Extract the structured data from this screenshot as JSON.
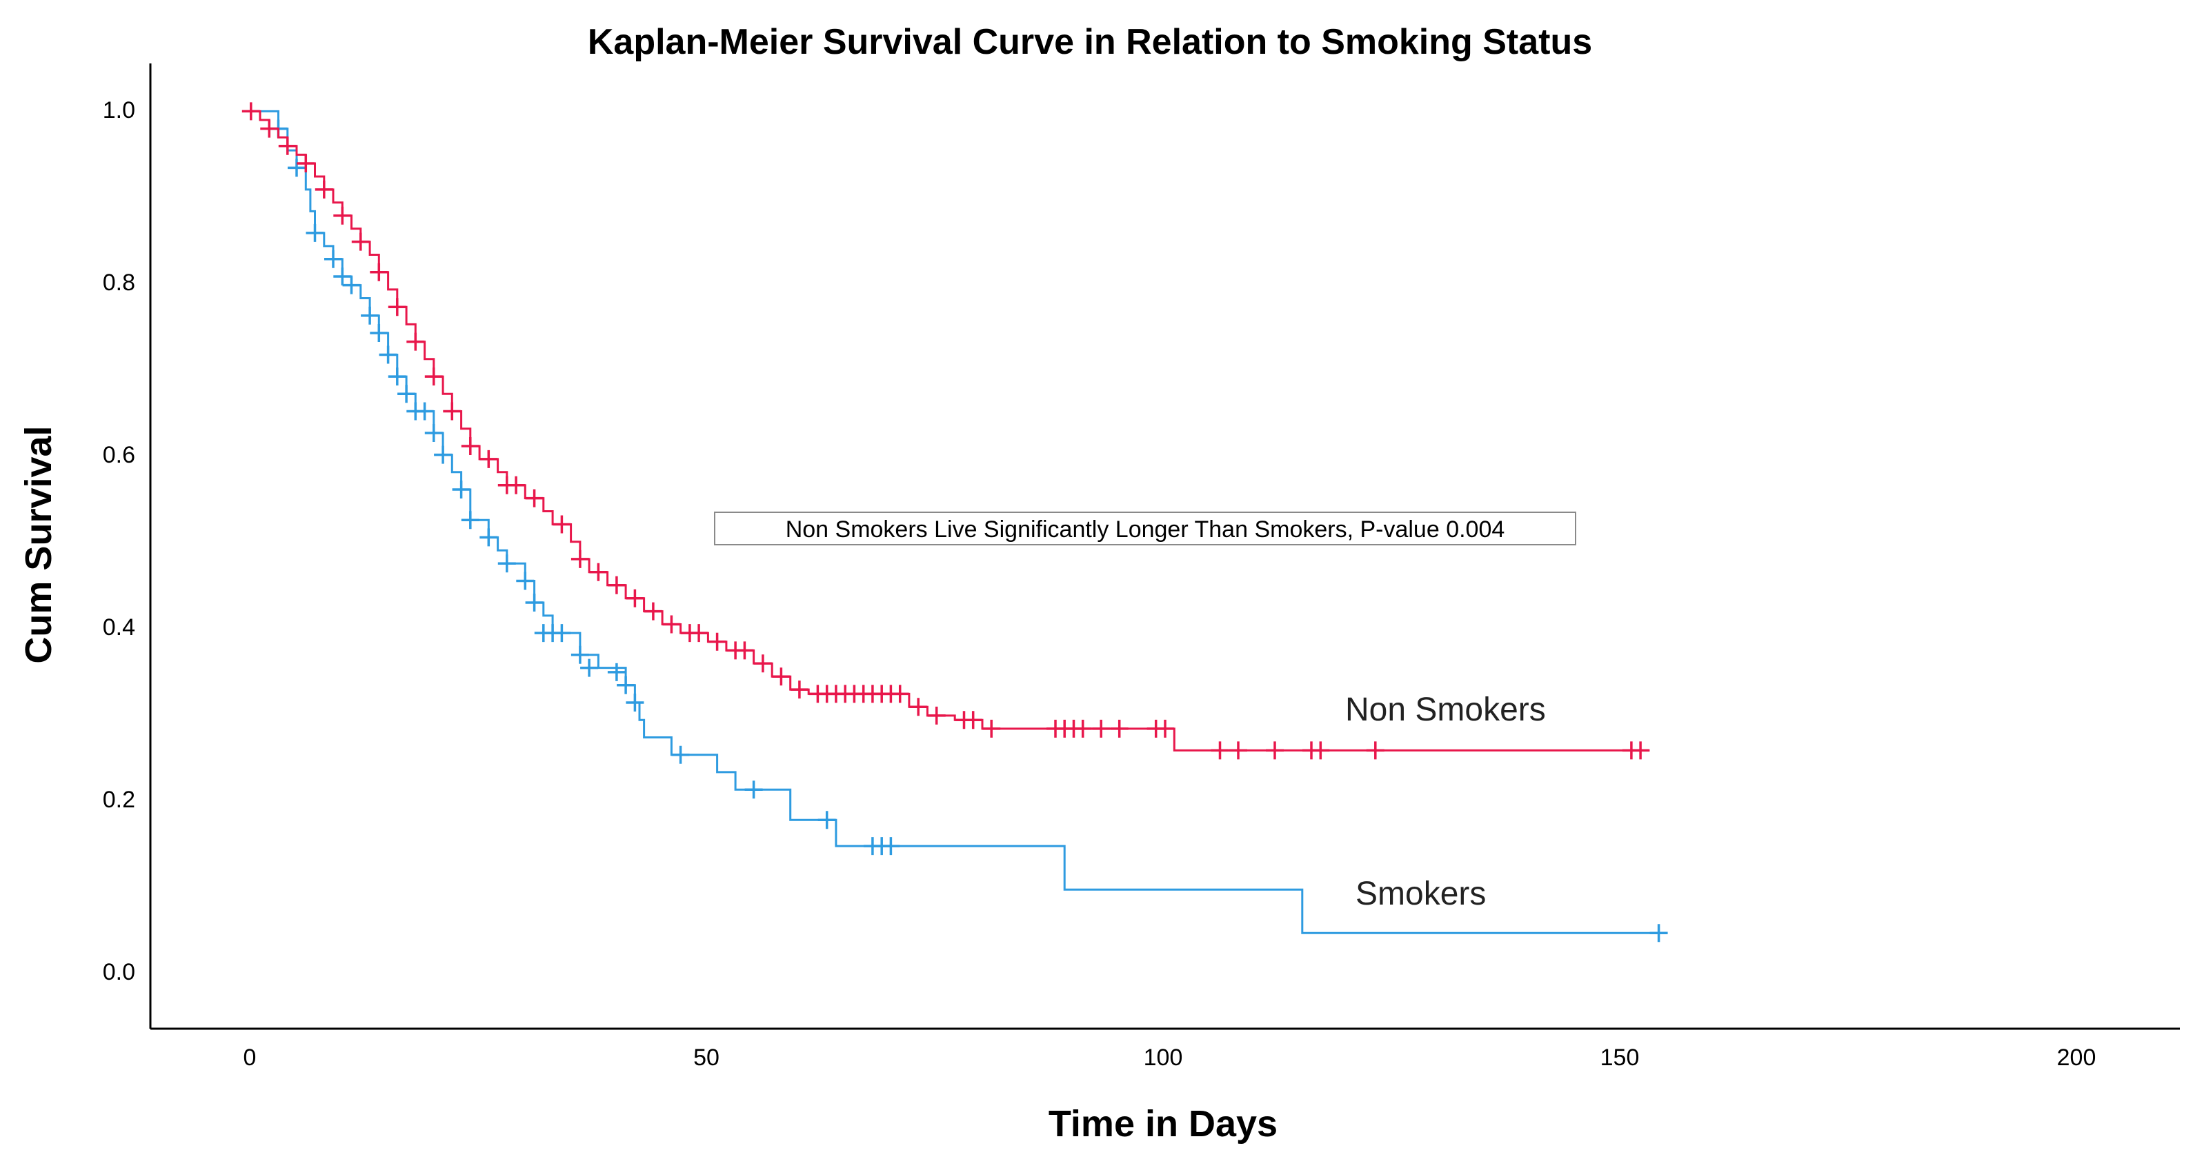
{
  "chart_data": {
    "type": "line",
    "subtype": "kaplan-meier-step",
    "title": "Kaplan-Meier Survival Curve in Relation to Smoking Status",
    "xlabel": "Time in Days",
    "ylabel": "Cum Survival",
    "xlim": [
      -11,
      211
    ],
    "ylim": [
      -0.055,
      1.055
    ],
    "xticks": [
      0,
      50,
      100,
      150,
      200
    ],
    "yticks": [
      0.0,
      0.2,
      0.4,
      0.6,
      0.8,
      1.0
    ],
    "xtick_labels": [
      "0",
      "50",
      "100",
      "150",
      "200"
    ],
    "ytick_labels": [
      "0.0",
      "0.2",
      "0.4",
      "0.6",
      "0.8",
      "1.0"
    ],
    "grid": false,
    "annotation": "Non Smokers Live Significantly Longer Than Smokers, P-value 0.004",
    "series": [
      {
        "name": "Non Smokers",
        "label_text": "Non Smokers",
        "color": "#E8174B",
        "steps": [
          [
            0,
            1.0
          ],
          [
            1,
            0.99
          ],
          [
            2,
            0.98
          ],
          [
            3,
            0.97
          ],
          [
            4,
            0.96
          ],
          [
            5,
            0.95
          ],
          [
            6,
            0.94
          ],
          [
            7,
            0.925
          ],
          [
            8,
            0.91
          ],
          [
            9,
            0.895
          ],
          [
            10,
            0.88
          ],
          [
            11,
            0.865
          ],
          [
            12,
            0.85
          ],
          [
            13,
            0.835
          ],
          [
            14,
            0.815
          ],
          [
            15,
            0.795
          ],
          [
            16,
            0.775
          ],
          [
            17,
            0.755
          ],
          [
            18,
            0.735
          ],
          [
            19,
            0.715
          ],
          [
            20,
            0.695
          ],
          [
            21,
            0.675
          ],
          [
            22,
            0.655
          ],
          [
            23,
            0.635
          ],
          [
            24,
            0.615
          ],
          [
            25,
            0.6
          ],
          [
            27,
            0.585
          ],
          [
            28,
            0.57
          ],
          [
            30,
            0.555
          ],
          [
            32,
            0.54
          ],
          [
            33,
            0.525
          ],
          [
            35,
            0.505
          ],
          [
            36,
            0.485
          ],
          [
            37,
            0.47
          ],
          [
            39,
            0.455
          ],
          [
            41,
            0.44
          ],
          [
            43,
            0.425
          ],
          [
            45,
            0.41
          ],
          [
            47,
            0.4
          ],
          [
            50,
            0.39
          ],
          [
            52,
            0.38
          ],
          [
            55,
            0.365
          ],
          [
            57,
            0.35
          ],
          [
            59,
            0.335
          ],
          [
            61,
            0.33
          ],
          [
            72,
            0.315
          ],
          [
            74,
            0.305
          ],
          [
            77,
            0.3
          ],
          [
            80,
            0.29
          ],
          [
            101,
            0.265
          ]
        ],
        "end_time": 153,
        "censored": [
          [
            0,
            1.0
          ],
          [
            2,
            0.98
          ],
          [
            4,
            0.96
          ],
          [
            6,
            0.94
          ],
          [
            8,
            0.91
          ],
          [
            10,
            0.88
          ],
          [
            12,
            0.85
          ],
          [
            14,
            0.815
          ],
          [
            16,
            0.775
          ],
          [
            18,
            0.735
          ],
          [
            20,
            0.695
          ],
          [
            22,
            0.655
          ],
          [
            24,
            0.615
          ],
          [
            26,
            0.6
          ],
          [
            28,
            0.57
          ],
          [
            29,
            0.57
          ],
          [
            31,
            0.555
          ],
          [
            34,
            0.525
          ],
          [
            36,
            0.485
          ],
          [
            38,
            0.47
          ],
          [
            40,
            0.455
          ],
          [
            42,
            0.44
          ],
          [
            44,
            0.425
          ],
          [
            46,
            0.41
          ],
          [
            48,
            0.4
          ],
          [
            49,
            0.4
          ],
          [
            51,
            0.39
          ],
          [
            53,
            0.38
          ],
          [
            54,
            0.38
          ],
          [
            56,
            0.365
          ],
          [
            58,
            0.35
          ],
          [
            60,
            0.335
          ],
          [
            62,
            0.33
          ],
          [
            63,
            0.33
          ],
          [
            64,
            0.33
          ],
          [
            65,
            0.33
          ],
          [
            66,
            0.33
          ],
          [
            67,
            0.33
          ],
          [
            68,
            0.33
          ],
          [
            69,
            0.33
          ],
          [
            70,
            0.33
          ],
          [
            71,
            0.33
          ],
          [
            73,
            0.315
          ],
          [
            75,
            0.305
          ],
          [
            78,
            0.3
          ],
          [
            79,
            0.3
          ],
          [
            81,
            0.29
          ],
          [
            88,
            0.29
          ],
          [
            89,
            0.29
          ],
          [
            90,
            0.29
          ],
          [
            91,
            0.29
          ],
          [
            93,
            0.29
          ],
          [
            95,
            0.29
          ],
          [
            99,
            0.29
          ],
          [
            100,
            0.29
          ],
          [
            106,
            0.265
          ],
          [
            108,
            0.265
          ],
          [
            112,
            0.265
          ],
          [
            116,
            0.265
          ],
          [
            117,
            0.265
          ],
          [
            123,
            0.265
          ],
          [
            151,
            0.265
          ],
          [
            152,
            0.265
          ]
        ]
      },
      {
        "name": "Smokers",
        "label_text": "Smokers",
        "color": "#2E9BE0",
        "steps": [
          [
            0,
            1.0
          ],
          [
            3,
            0.98
          ],
          [
            4,
            0.955
          ],
          [
            5,
            0.935
          ],
          [
            6,
            0.91
          ],
          [
            6.5,
            0.885
          ],
          [
            7,
            0.86
          ],
          [
            8,
            0.845
          ],
          [
            9,
            0.83
          ],
          [
            10,
            0.81
          ],
          [
            11,
            0.8
          ],
          [
            12,
            0.785
          ],
          [
            13,
            0.765
          ],
          [
            14,
            0.745
          ],
          [
            15,
            0.72
          ],
          [
            16,
            0.695
          ],
          [
            17,
            0.675
          ],
          [
            18,
            0.655
          ],
          [
            20,
            0.63
          ],
          [
            21,
            0.605
          ],
          [
            22,
            0.585
          ],
          [
            23,
            0.565
          ],
          [
            24,
            0.53
          ],
          [
            26,
            0.51
          ],
          [
            27,
            0.495
          ],
          [
            28,
            0.48
          ],
          [
            30,
            0.46
          ],
          [
            31,
            0.435
          ],
          [
            32,
            0.42
          ],
          [
            33,
            0.4
          ],
          [
            36,
            0.375
          ],
          [
            38,
            0.36
          ],
          [
            41,
            0.34
          ],
          [
            42,
            0.32
          ],
          [
            42.5,
            0.3
          ],
          [
            43,
            0.28
          ],
          [
            46,
            0.26
          ],
          [
            51,
            0.24
          ],
          [
            53,
            0.22
          ],
          [
            59,
            0.185
          ],
          [
            64,
            0.155
          ],
          [
            89,
            0.105
          ],
          [
            115,
            0.055
          ]
        ],
        "end_time": 154,
        "censored": [
          [
            3,
            0.98
          ],
          [
            5,
            0.935
          ],
          [
            7,
            0.86
          ],
          [
            9,
            0.83
          ],
          [
            10,
            0.81
          ],
          [
            11,
            0.8
          ],
          [
            13,
            0.765
          ],
          [
            14,
            0.745
          ],
          [
            15,
            0.72
          ],
          [
            16,
            0.695
          ],
          [
            17,
            0.675
          ],
          [
            18,
            0.655
          ],
          [
            19,
            0.655
          ],
          [
            20,
            0.63
          ],
          [
            21,
            0.605
          ],
          [
            23,
            0.565
          ],
          [
            24,
            0.53
          ],
          [
            26,
            0.51
          ],
          [
            28,
            0.48
          ],
          [
            30,
            0.46
          ],
          [
            31,
            0.435
          ],
          [
            32,
            0.4
          ],
          [
            33,
            0.4
          ],
          [
            34,
            0.4
          ],
          [
            36,
            0.375
          ],
          [
            37,
            0.36
          ],
          [
            40,
            0.355
          ],
          [
            41,
            0.34
          ],
          [
            42,
            0.32
          ],
          [
            47,
            0.26
          ],
          [
            55,
            0.22
          ],
          [
            63,
            0.185
          ],
          [
            68,
            0.155
          ],
          [
            69,
            0.155
          ],
          [
            70,
            0.155
          ],
          [
            154,
            0.055
          ]
        ]
      }
    ]
  }
}
